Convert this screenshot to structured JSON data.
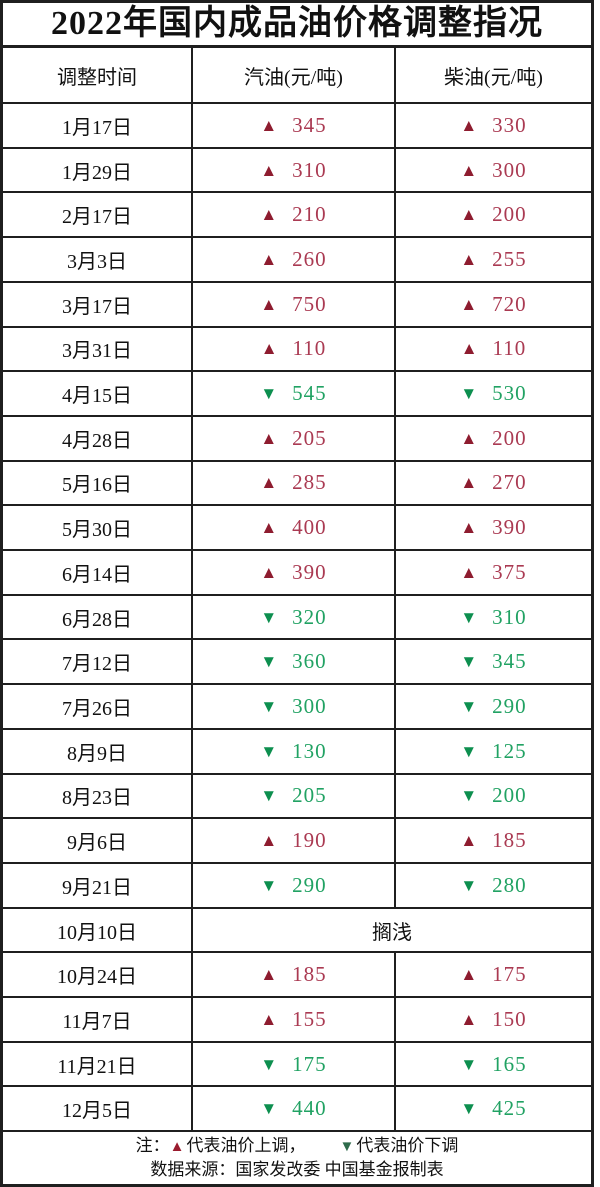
{
  "title": "2022年国内成品油价格调整指况",
  "symbols": {
    "up": "▲",
    "down": "▼"
  },
  "colors": {
    "border": "#1f1f1f",
    "up_arrow": "#8e1c2f",
    "up_text": "#aa3a52",
    "down_arrow": "#0d8f4f",
    "down_text": "#21a263",
    "note_up": "#9a1b2e",
    "note_down": "#2e6b4b"
  },
  "table": {
    "columns": [
      "调整时间",
      "汽油(元/吨)",
      "柴油(元/吨)"
    ],
    "rows": [
      {
        "date": "1月17日",
        "gas": {
          "dir": "up",
          "value": "345"
        },
        "diesel": {
          "dir": "up",
          "value": "330"
        }
      },
      {
        "date": "1月29日",
        "gas": {
          "dir": "up",
          "value": "310"
        },
        "diesel": {
          "dir": "up",
          "value": "300"
        }
      },
      {
        "date": "2月17日",
        "gas": {
          "dir": "up",
          "value": "210"
        },
        "diesel": {
          "dir": "up",
          "value": "200"
        }
      },
      {
        "date": "3月3日",
        "gas": {
          "dir": "up",
          "value": "260"
        },
        "diesel": {
          "dir": "up",
          "value": "255"
        }
      },
      {
        "date": "3月17日",
        "gas": {
          "dir": "up",
          "value": "750"
        },
        "diesel": {
          "dir": "up",
          "value": "720"
        }
      },
      {
        "date": "3月31日",
        "gas": {
          "dir": "up",
          "value": "110"
        },
        "diesel": {
          "dir": "up",
          "value": "110"
        }
      },
      {
        "date": "4月15日",
        "gas": {
          "dir": "down",
          "value": "545"
        },
        "diesel": {
          "dir": "down",
          "value": "530"
        }
      },
      {
        "date": "4月28日",
        "gas": {
          "dir": "up",
          "value": "205"
        },
        "diesel": {
          "dir": "up",
          "value": "200"
        }
      },
      {
        "date": "5月16日",
        "gas": {
          "dir": "up",
          "value": "285"
        },
        "diesel": {
          "dir": "up",
          "value": "270"
        }
      },
      {
        "date": "5月30日",
        "gas": {
          "dir": "up",
          "value": "400"
        },
        "diesel": {
          "dir": "up",
          "value": "390"
        }
      },
      {
        "date": "6月14日",
        "gas": {
          "dir": "up",
          "value": "390"
        },
        "diesel": {
          "dir": "up",
          "value": "375"
        }
      },
      {
        "date": "6月28日",
        "gas": {
          "dir": "down",
          "value": "320"
        },
        "diesel": {
          "dir": "down",
          "value": "310"
        }
      },
      {
        "date": "7月12日",
        "gas": {
          "dir": "down",
          "value": "360"
        },
        "diesel": {
          "dir": "down",
          "value": "345"
        }
      },
      {
        "date": "7月26日",
        "gas": {
          "dir": "down",
          "value": "300"
        },
        "diesel": {
          "dir": "down",
          "value": "290"
        }
      },
      {
        "date": "8月9日",
        "gas": {
          "dir": "down",
          "value": "130"
        },
        "diesel": {
          "dir": "down",
          "value": "125"
        }
      },
      {
        "date": "8月23日",
        "gas": {
          "dir": "down",
          "value": "205"
        },
        "diesel": {
          "dir": "down",
          "value": "200"
        }
      },
      {
        "date": "9月6日",
        "gas": {
          "dir": "up",
          "value": "190"
        },
        "diesel": {
          "dir": "up",
          "value": "185"
        }
      },
      {
        "date": "9月21日",
        "gas": {
          "dir": "down",
          "value": "290"
        },
        "diesel": {
          "dir": "down",
          "value": "280"
        }
      },
      {
        "date": "10月10日",
        "merged": "搁浅"
      },
      {
        "date": "10月24日",
        "gas": {
          "dir": "up",
          "value": "185"
        },
        "diesel": {
          "dir": "up",
          "value": "175"
        }
      },
      {
        "date": "11月7日",
        "gas": {
          "dir": "up",
          "value": "155"
        },
        "diesel": {
          "dir": "up",
          "value": "150"
        }
      },
      {
        "date": "11月21日",
        "gas": {
          "dir": "down",
          "value": "175"
        },
        "diesel": {
          "dir": "down",
          "value": "165"
        }
      },
      {
        "date": "12月5日",
        "gas": {
          "dir": "down",
          "value": "440"
        },
        "diesel": {
          "dir": "down",
          "value": "425"
        }
      }
    ]
  },
  "footer": {
    "note_prefix": "注：",
    "up_meaning": "代表油价上调，",
    "down_meaning": "代表油价下调",
    "source_line": "数据来源：国家发改委  中国基金报制表"
  },
  "chart_data": {
    "type": "table",
    "title": "2022年国内成品油价格调整指况",
    "columns": [
      "调整时间",
      "汽油(元/吨)",
      "柴油(元/吨)"
    ],
    "value_convention": "正数=上调(▲)，负数=下调(▼)，null=搁浅",
    "rows": [
      {
        "date": "1月17日",
        "gasoline": 345,
        "diesel": 330
      },
      {
        "date": "1月29日",
        "gasoline": 310,
        "diesel": 300
      },
      {
        "date": "2月17日",
        "gasoline": 210,
        "diesel": 200
      },
      {
        "date": "3月3日",
        "gasoline": 260,
        "diesel": 255
      },
      {
        "date": "3月17日",
        "gasoline": 750,
        "diesel": 720
      },
      {
        "date": "3月31日",
        "gasoline": 110,
        "diesel": 110
      },
      {
        "date": "4月15日",
        "gasoline": -545,
        "diesel": -530
      },
      {
        "date": "4月28日",
        "gasoline": 205,
        "diesel": 200
      },
      {
        "date": "5月16日",
        "gasoline": 285,
        "diesel": 270
      },
      {
        "date": "5月30日",
        "gasoline": 400,
        "diesel": 390
      },
      {
        "date": "6月14日",
        "gasoline": 390,
        "diesel": 375
      },
      {
        "date": "6月28日",
        "gasoline": -320,
        "diesel": -310
      },
      {
        "date": "7月12日",
        "gasoline": -360,
        "diesel": -345
      },
      {
        "date": "7月26日",
        "gasoline": -300,
        "diesel": -290
      },
      {
        "date": "8月9日",
        "gasoline": -130,
        "diesel": -125
      },
      {
        "date": "8月23日",
        "gasoline": -205,
        "diesel": -200
      },
      {
        "date": "9月6日",
        "gasoline": 190,
        "diesel": 185
      },
      {
        "date": "9月21日",
        "gasoline": -290,
        "diesel": -280
      },
      {
        "date": "10月10日",
        "gasoline": null,
        "diesel": null,
        "note": "搁浅"
      },
      {
        "date": "10月24日",
        "gasoline": 185,
        "diesel": 175
      },
      {
        "date": "11月7日",
        "gasoline": 155,
        "diesel": 150
      },
      {
        "date": "11月21日",
        "gasoline": -175,
        "diesel": -165
      },
      {
        "date": "12月5日",
        "gasoline": -440,
        "diesel": -425
      }
    ],
    "notes": "注：▲代表油价上调，▼代表油价下调；数据来源：国家发改委 中国基金报制表"
  }
}
